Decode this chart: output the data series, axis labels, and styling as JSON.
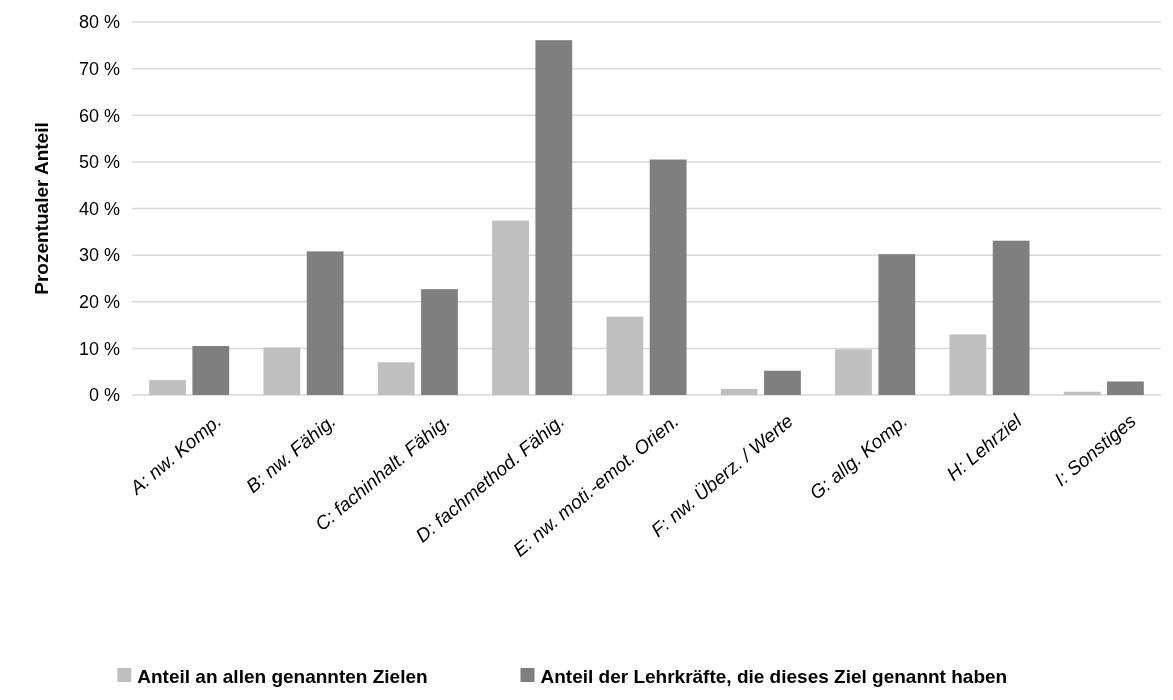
{
  "chart_data": {
    "type": "bar",
    "ylabel": "Prozentualer Anteil",
    "categories": [
      "A: nw. Komp.",
      "B: nw. Fähig.",
      "C: fachinhalt. Fähig.",
      "D: fachmethod. Fähig.",
      "E: nw. moti.-emot. Orien.",
      "F: nw. Überz. / Werte",
      "G: allg. Komp.",
      "H: Lehrziel",
      "I: Sonstiges"
    ],
    "series": [
      {
        "name": "Anteil an allen genannten Zielen",
        "color": "#bfbfbf",
        "values": [
          3.2,
          10.2,
          7.0,
          37.4,
          16.8,
          1.3,
          9.8,
          13.0,
          0.7
        ]
      },
      {
        "name": "Anteil der Lehrkräfte, die dieses Ziel genannt haben",
        "color": "#7f7f7f",
        "values": [
          10.5,
          30.8,
          22.7,
          76.1,
          50.5,
          5.2,
          30.2,
          33.1,
          2.9
        ]
      }
    ],
    "ylim": [
      0,
      80
    ],
    "yticks": [
      {
        "value": 0,
        "label": "0 %"
      },
      {
        "value": 10,
        "label": "10 %"
      },
      {
        "value": 20,
        "label": "20 %"
      },
      {
        "value": 30,
        "label": "30 %"
      },
      {
        "value": 40,
        "label": "40 %"
      },
      {
        "value": 50,
        "label": "50 %"
      },
      {
        "value": 60,
        "label": "60 %"
      },
      {
        "value": 70,
        "label": "70 %"
      },
      {
        "value": 80,
        "label": "80 %"
      }
    ],
    "grid": "y",
    "legend": "bottom"
  }
}
